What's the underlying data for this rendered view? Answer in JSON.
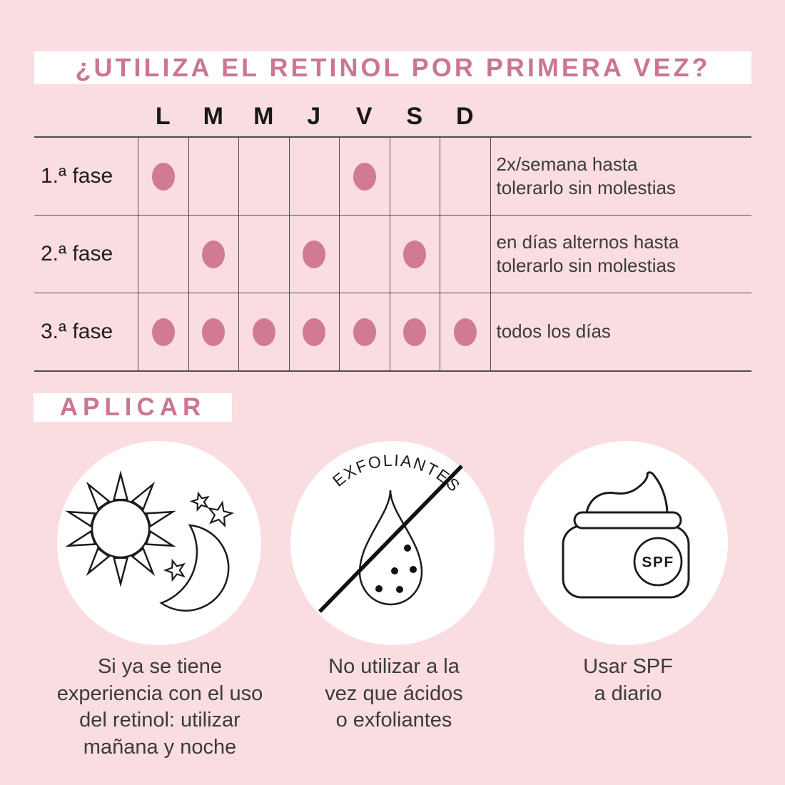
{
  "colors": {
    "background": "#fadde0",
    "accent": "#cc7690",
    "dot": "#d07b93",
    "line": "#4e4e4e",
    "text": "#3b3b3b",
    "icon_stroke": "#1c1c1c"
  },
  "title": "¿UTILIZA EL RETINOL POR PRIMERA VEZ?",
  "schedule": {
    "day_headers": [
      "L",
      "M",
      "M",
      "J",
      "V",
      "S",
      "D"
    ],
    "phases": [
      {
        "label": "1.ª fase",
        "dots": [
          1,
          0,
          0,
          0,
          1,
          0,
          0
        ],
        "note_lines": [
          "2x/semana hasta",
          "tolerarlo sin molestias"
        ]
      },
      {
        "label": "2.ª fase",
        "dots": [
          0,
          1,
          0,
          1,
          0,
          1,
          0
        ],
        "note_lines": [
          "en días alternos hasta",
          "tolerarlo sin molestias"
        ]
      },
      {
        "label": "3.ª fase",
        "dots": [
          1,
          1,
          1,
          1,
          1,
          1,
          1
        ],
        "note_lines": [
          "todos los días"
        ]
      }
    ]
  },
  "apply_section": {
    "heading": "APLICAR",
    "items": [
      {
        "icon": "sun-moon-icon",
        "caption_lines": [
          "Si ya se tiene",
          "experiencia con el uso",
          "del retinol: utilizar",
          "mañana y noche"
        ]
      },
      {
        "icon": "no-exfoliants-icon",
        "icon_label": "EXFOLIANTES",
        "caption_lines": [
          "No utilizar a la",
          "vez que ácidos",
          "o exfoliantes"
        ]
      },
      {
        "icon": "spf-jar-icon",
        "icon_label": "SPF",
        "caption_lines": [
          "Usar SPF",
          "a diario"
        ]
      }
    ]
  }
}
